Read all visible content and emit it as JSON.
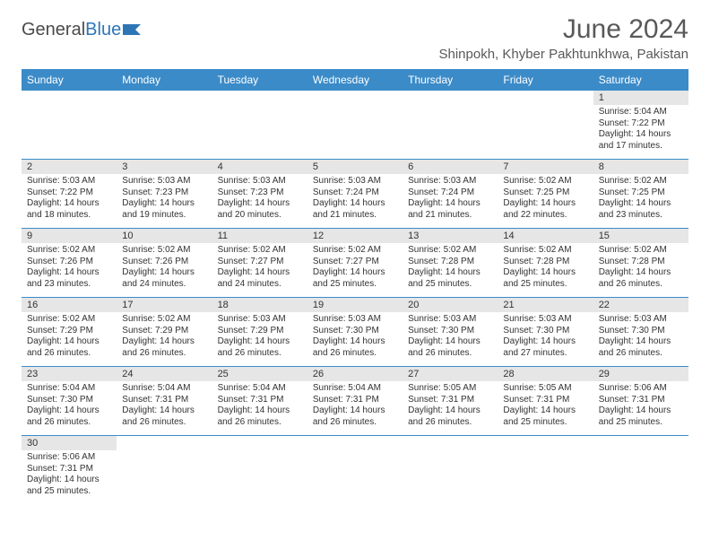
{
  "logo": {
    "part1": "General",
    "part2": "Blue"
  },
  "title": "June 2024",
  "location": "Shinpokh, Khyber Pakhtunkhwa, Pakistan",
  "colors": {
    "header_bg": "#3b8bc8",
    "header_text": "#ffffff",
    "daynum_bg": "#e6e6e6",
    "border": "#3b8bc8",
    "title_color": "#595959",
    "text_color": "#333333"
  },
  "day_headers": [
    "Sunday",
    "Monday",
    "Tuesday",
    "Wednesday",
    "Thursday",
    "Friday",
    "Saturday"
  ],
  "weeks": [
    [
      null,
      null,
      null,
      null,
      null,
      null,
      {
        "n": "1",
        "sr": "Sunrise: 5:04 AM",
        "ss": "Sunset: 7:22 PM",
        "d1": "Daylight: 14 hours",
        "d2": "and 17 minutes."
      }
    ],
    [
      {
        "n": "2",
        "sr": "Sunrise: 5:03 AM",
        "ss": "Sunset: 7:22 PM",
        "d1": "Daylight: 14 hours",
        "d2": "and 18 minutes."
      },
      {
        "n": "3",
        "sr": "Sunrise: 5:03 AM",
        "ss": "Sunset: 7:23 PM",
        "d1": "Daylight: 14 hours",
        "d2": "and 19 minutes."
      },
      {
        "n": "4",
        "sr": "Sunrise: 5:03 AM",
        "ss": "Sunset: 7:23 PM",
        "d1": "Daylight: 14 hours",
        "d2": "and 20 minutes."
      },
      {
        "n": "5",
        "sr": "Sunrise: 5:03 AM",
        "ss": "Sunset: 7:24 PM",
        "d1": "Daylight: 14 hours",
        "d2": "and 21 minutes."
      },
      {
        "n": "6",
        "sr": "Sunrise: 5:03 AM",
        "ss": "Sunset: 7:24 PM",
        "d1": "Daylight: 14 hours",
        "d2": "and 21 minutes."
      },
      {
        "n": "7",
        "sr": "Sunrise: 5:02 AM",
        "ss": "Sunset: 7:25 PM",
        "d1": "Daylight: 14 hours",
        "d2": "and 22 minutes."
      },
      {
        "n": "8",
        "sr": "Sunrise: 5:02 AM",
        "ss": "Sunset: 7:25 PM",
        "d1": "Daylight: 14 hours",
        "d2": "and 23 minutes."
      }
    ],
    [
      {
        "n": "9",
        "sr": "Sunrise: 5:02 AM",
        "ss": "Sunset: 7:26 PM",
        "d1": "Daylight: 14 hours",
        "d2": "and 23 minutes."
      },
      {
        "n": "10",
        "sr": "Sunrise: 5:02 AM",
        "ss": "Sunset: 7:26 PM",
        "d1": "Daylight: 14 hours",
        "d2": "and 24 minutes."
      },
      {
        "n": "11",
        "sr": "Sunrise: 5:02 AM",
        "ss": "Sunset: 7:27 PM",
        "d1": "Daylight: 14 hours",
        "d2": "and 24 minutes."
      },
      {
        "n": "12",
        "sr": "Sunrise: 5:02 AM",
        "ss": "Sunset: 7:27 PM",
        "d1": "Daylight: 14 hours",
        "d2": "and 25 minutes."
      },
      {
        "n": "13",
        "sr": "Sunrise: 5:02 AM",
        "ss": "Sunset: 7:28 PM",
        "d1": "Daylight: 14 hours",
        "d2": "and 25 minutes."
      },
      {
        "n": "14",
        "sr": "Sunrise: 5:02 AM",
        "ss": "Sunset: 7:28 PM",
        "d1": "Daylight: 14 hours",
        "d2": "and 25 minutes."
      },
      {
        "n": "15",
        "sr": "Sunrise: 5:02 AM",
        "ss": "Sunset: 7:28 PM",
        "d1": "Daylight: 14 hours",
        "d2": "and 26 minutes."
      }
    ],
    [
      {
        "n": "16",
        "sr": "Sunrise: 5:02 AM",
        "ss": "Sunset: 7:29 PM",
        "d1": "Daylight: 14 hours",
        "d2": "and 26 minutes."
      },
      {
        "n": "17",
        "sr": "Sunrise: 5:02 AM",
        "ss": "Sunset: 7:29 PM",
        "d1": "Daylight: 14 hours",
        "d2": "and 26 minutes."
      },
      {
        "n": "18",
        "sr": "Sunrise: 5:03 AM",
        "ss": "Sunset: 7:29 PM",
        "d1": "Daylight: 14 hours",
        "d2": "and 26 minutes."
      },
      {
        "n": "19",
        "sr": "Sunrise: 5:03 AM",
        "ss": "Sunset: 7:30 PM",
        "d1": "Daylight: 14 hours",
        "d2": "and 26 minutes."
      },
      {
        "n": "20",
        "sr": "Sunrise: 5:03 AM",
        "ss": "Sunset: 7:30 PM",
        "d1": "Daylight: 14 hours",
        "d2": "and 26 minutes."
      },
      {
        "n": "21",
        "sr": "Sunrise: 5:03 AM",
        "ss": "Sunset: 7:30 PM",
        "d1": "Daylight: 14 hours",
        "d2": "and 27 minutes."
      },
      {
        "n": "22",
        "sr": "Sunrise: 5:03 AM",
        "ss": "Sunset: 7:30 PM",
        "d1": "Daylight: 14 hours",
        "d2": "and 26 minutes."
      }
    ],
    [
      {
        "n": "23",
        "sr": "Sunrise: 5:04 AM",
        "ss": "Sunset: 7:30 PM",
        "d1": "Daylight: 14 hours",
        "d2": "and 26 minutes."
      },
      {
        "n": "24",
        "sr": "Sunrise: 5:04 AM",
        "ss": "Sunset: 7:31 PM",
        "d1": "Daylight: 14 hours",
        "d2": "and 26 minutes."
      },
      {
        "n": "25",
        "sr": "Sunrise: 5:04 AM",
        "ss": "Sunset: 7:31 PM",
        "d1": "Daylight: 14 hours",
        "d2": "and 26 minutes."
      },
      {
        "n": "26",
        "sr": "Sunrise: 5:04 AM",
        "ss": "Sunset: 7:31 PM",
        "d1": "Daylight: 14 hours",
        "d2": "and 26 minutes."
      },
      {
        "n": "27",
        "sr": "Sunrise: 5:05 AM",
        "ss": "Sunset: 7:31 PM",
        "d1": "Daylight: 14 hours",
        "d2": "and 26 minutes."
      },
      {
        "n": "28",
        "sr": "Sunrise: 5:05 AM",
        "ss": "Sunset: 7:31 PM",
        "d1": "Daylight: 14 hours",
        "d2": "and 25 minutes."
      },
      {
        "n": "29",
        "sr": "Sunrise: 5:06 AM",
        "ss": "Sunset: 7:31 PM",
        "d1": "Daylight: 14 hours",
        "d2": "and 25 minutes."
      }
    ],
    [
      {
        "n": "30",
        "sr": "Sunrise: 5:06 AM",
        "ss": "Sunset: 7:31 PM",
        "d1": "Daylight: 14 hours",
        "d2": "and 25 minutes."
      },
      null,
      null,
      null,
      null,
      null,
      null
    ]
  ]
}
